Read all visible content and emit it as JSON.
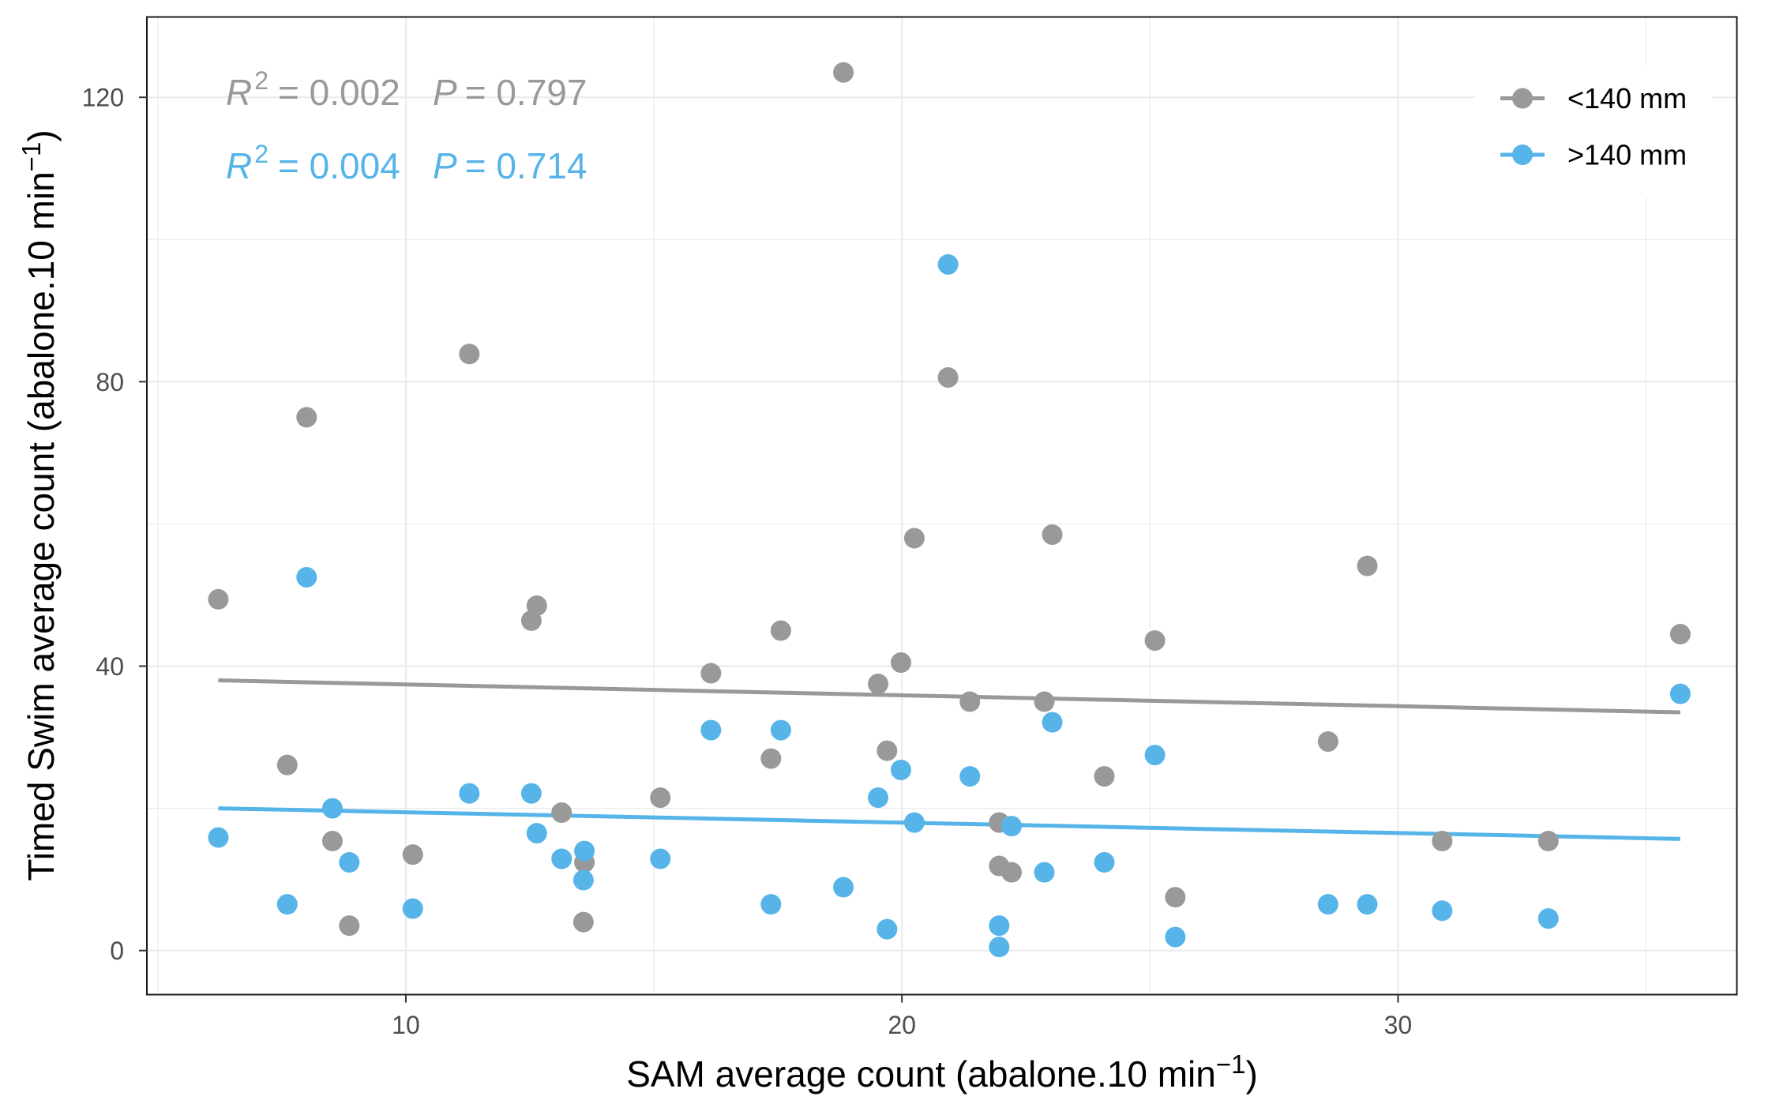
{
  "chart_data": {
    "type": "scatter",
    "xlabel": {
      "text": "SAM average count (abalone.10 min",
      "sup": "−1",
      "end": ")"
    },
    "ylabel": {
      "text": "Timed Swim average count (abalone.10 min",
      "sup": "−1",
      "end": ")"
    },
    "xlim": [
      4.78,
      36.83
    ],
    "ylim": [
      -6.2,
      131.3
    ],
    "x_ticks": [
      10,
      20,
      30
    ],
    "y_ticks": [
      0,
      40,
      80,
      120
    ],
    "grid": true,
    "legend_position": "top-right",
    "x": [
      6.22,
      7.61,
      8.0,
      8.52,
      8.86,
      10.14,
      11.28,
      12.53,
      12.64,
      13.14,
      13.6,
      13.58,
      15.13,
      16.15,
      17.36,
      17.56,
      18.82,
      19.52,
      19.7,
      19.98,
      20.25,
      20.93,
      21.37,
      21.96,
      21.96,
      22.21,
      22.87,
      23.03,
      24.08,
      25.1,
      25.51,
      28.59,
      29.38,
      30.89,
      33.03,
      35.69
    ],
    "series": [
      {
        "name": "<140 mm",
        "color": "#999999",
        "y": [
          49.4,
          26.1,
          75.0,
          15.4,
          3.5,
          13.5,
          83.9,
          46.4,
          48.5,
          19.4,
          12.4,
          4.0,
          21.5,
          39.0,
          27.0,
          45.0,
          123.5,
          37.5,
          28.1,
          40.5,
          58.0,
          80.6,
          35.0,
          18.0,
          11.9,
          11.0,
          35.0,
          58.5,
          24.5,
          43.6,
          7.5,
          29.4,
          54.1,
          15.4,
          15.4,
          44.5
        ],
        "trend": {
          "x": [
            6.22,
            35.69
          ],
          "y": [
            38.0,
            33.5
          ]
        }
      },
      {
        "name": ">140 mm",
        "color": "#56B4E9",
        "y": [
          15.9,
          6.5,
          52.5,
          20.0,
          12.4,
          5.9,
          22.1,
          22.1,
          16.5,
          12.9,
          14.0,
          9.9,
          12.9,
          31.0,
          6.5,
          31.0,
          8.9,
          21.5,
          3.0,
          25.4,
          18.0,
          96.5,
          24.5,
          3.5,
          0.5,
          17.5,
          11.0,
          32.1,
          12.4,
          27.5,
          1.9,
          6.5,
          6.5,
          5.6,
          4.5,
          36.1
        ],
        "trend": {
          "x": [
            6.22,
            35.69
          ],
          "y": [
            20.0,
            15.7
          ]
        }
      }
    ],
    "annotations": [
      {
        "r_symbol": "R",
        "r_exponent": "2",
        "r2_value": "= 0.002",
        "p_symbol": "P",
        "p_value": "= 0.797"
      },
      {
        "r_symbol": "R",
        "r_exponent": "2",
        "r2_value": "= 0.004",
        "p_symbol": "P",
        "p_value": "= 0.714"
      }
    ]
  }
}
